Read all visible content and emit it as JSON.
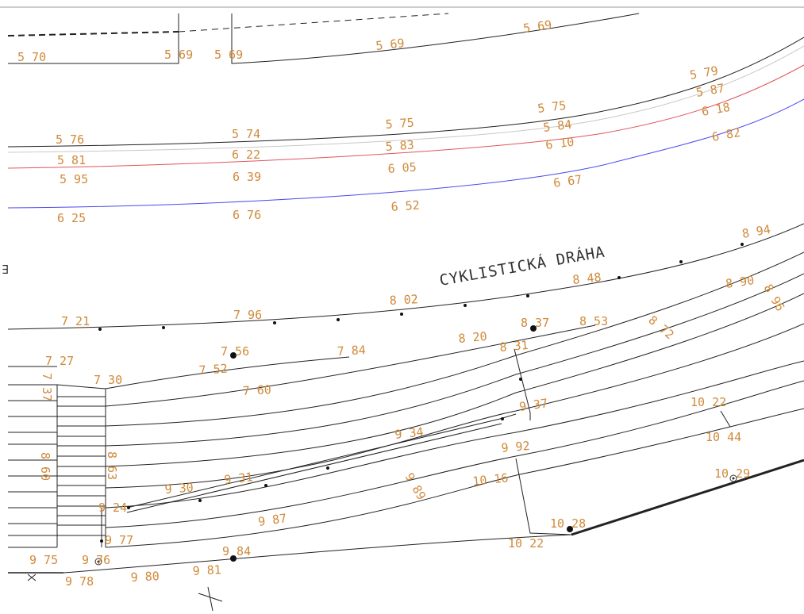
{
  "colors": {
    "label": "#d08a3a",
    "title": "#333333",
    "line": "#222222",
    "red_line": "#e0555a",
    "blue_line": "#4a4af0",
    "grey_line": "#c8c8c8"
  },
  "title_text": "CYKLISTICKÁ DRÁHA",
  "edge_glyph": "∃",
  "labels": [
    "5 70",
    "5 69",
    "5 69",
    "5 69",
    "5 69",
    "5 79",
    "5 87",
    "6 18",
    "6 82",
    "5 75",
    "5 84",
    "6 10",
    "6 67",
    "5 75",
    "5 83",
    "6 05",
    "6 52",
    "5 74",
    "6 22",
    "6 39",
    "6 76",
    "5 76",
    "5 81",
    "5 95",
    "6 25",
    "8 94",
    "8 48",
    "8 02",
    "7 96",
    "7 21",
    "8 90",
    "8 96",
    "8 72",
    "8 53",
    "8 37",
    "8 20",
    "8 31",
    "7 84",
    "7 56",
    "7 52",
    "7 60",
    "7 27",
    "7 30",
    "7 37",
    "9 37",
    "9 34",
    "9 92",
    "9 89",
    "10 16",
    "9 31",
    "9 30",
    "8 63",
    "8 60",
    "9 24",
    "9 87",
    "9 77",
    "10 22",
    "10 44",
    "10 29",
    "10 28",
    "10 22",
    "9 84",
    "9 81",
    "9 80",
    "9 78",
    "9 75",
    "9 76"
  ]
}
